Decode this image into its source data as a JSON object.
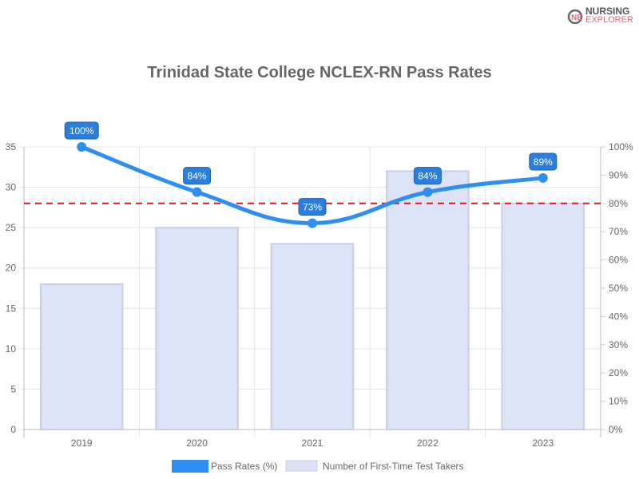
{
  "logo": {
    "line1": "NURSING",
    "line2": "EXPLORER"
  },
  "chart_data": {
    "type": "bar+line",
    "title": "Trinidad State College NCLEX-RN Pass Rates",
    "categories": [
      "2019",
      "2020",
      "2021",
      "2022",
      "2023"
    ],
    "series": [
      {
        "name": "Pass Rates (%)",
        "type": "line",
        "axis": "right",
        "values": [
          100,
          84,
          73,
          84,
          89
        ],
        "labels": [
          "100%",
          "84%",
          "73%",
          "84%",
          "89%"
        ],
        "color": "#2f8ff0"
      },
      {
        "name": "Number of First-Time Test Takers",
        "type": "bar",
        "axis": "left",
        "values": [
          18,
          25,
          23,
          32,
          28
        ],
        "color": "#dce3f7"
      }
    ],
    "left_axis": {
      "range": [
        0,
        35
      ],
      "ticks": [
        "0",
        "5",
        "10",
        "15",
        "20",
        "25",
        "30",
        "35"
      ]
    },
    "right_axis": {
      "range": [
        0,
        100
      ],
      "ticks": [
        "0%",
        "10%",
        "20%",
        "30%",
        "40%",
        "50%",
        "60%",
        "70%",
        "80%",
        "90%",
        "100%"
      ]
    },
    "reference_line": {
      "value": 80,
      "axis": "right",
      "style": "dashed",
      "color": "#e8121c"
    },
    "grid": true,
    "legend": "bottom"
  }
}
